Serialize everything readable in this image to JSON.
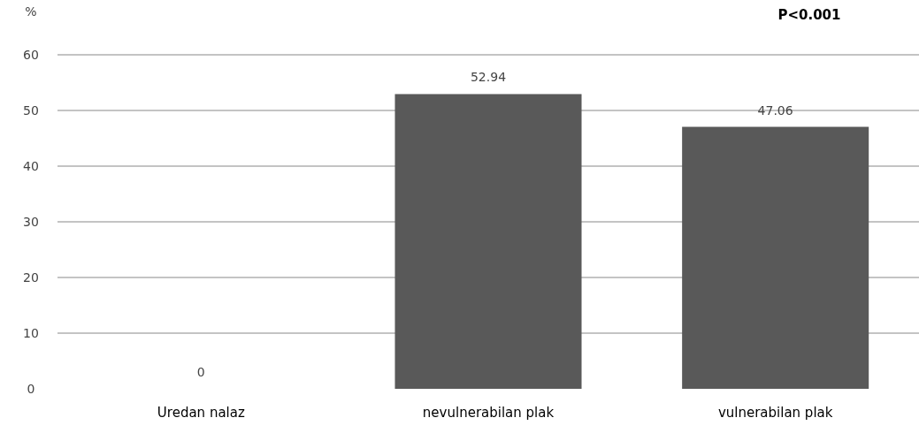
{
  "chart_data": {
    "type": "bar",
    "ylabel": "%",
    "annotations": [
      "P<0.001"
    ],
    "categories": [
      "Uredan nalaz",
      "nevulnerabilan plak",
      "vulnerabilan plak"
    ],
    "values": [
      0,
      52.94,
      47.06
    ],
    "color": "#595959",
    "data_labels": true,
    "ylim": [
      0,
      60
    ],
    "yticks": [
      0,
      10,
      20,
      30,
      40,
      50,
      60
    ],
    "grid": "y"
  }
}
